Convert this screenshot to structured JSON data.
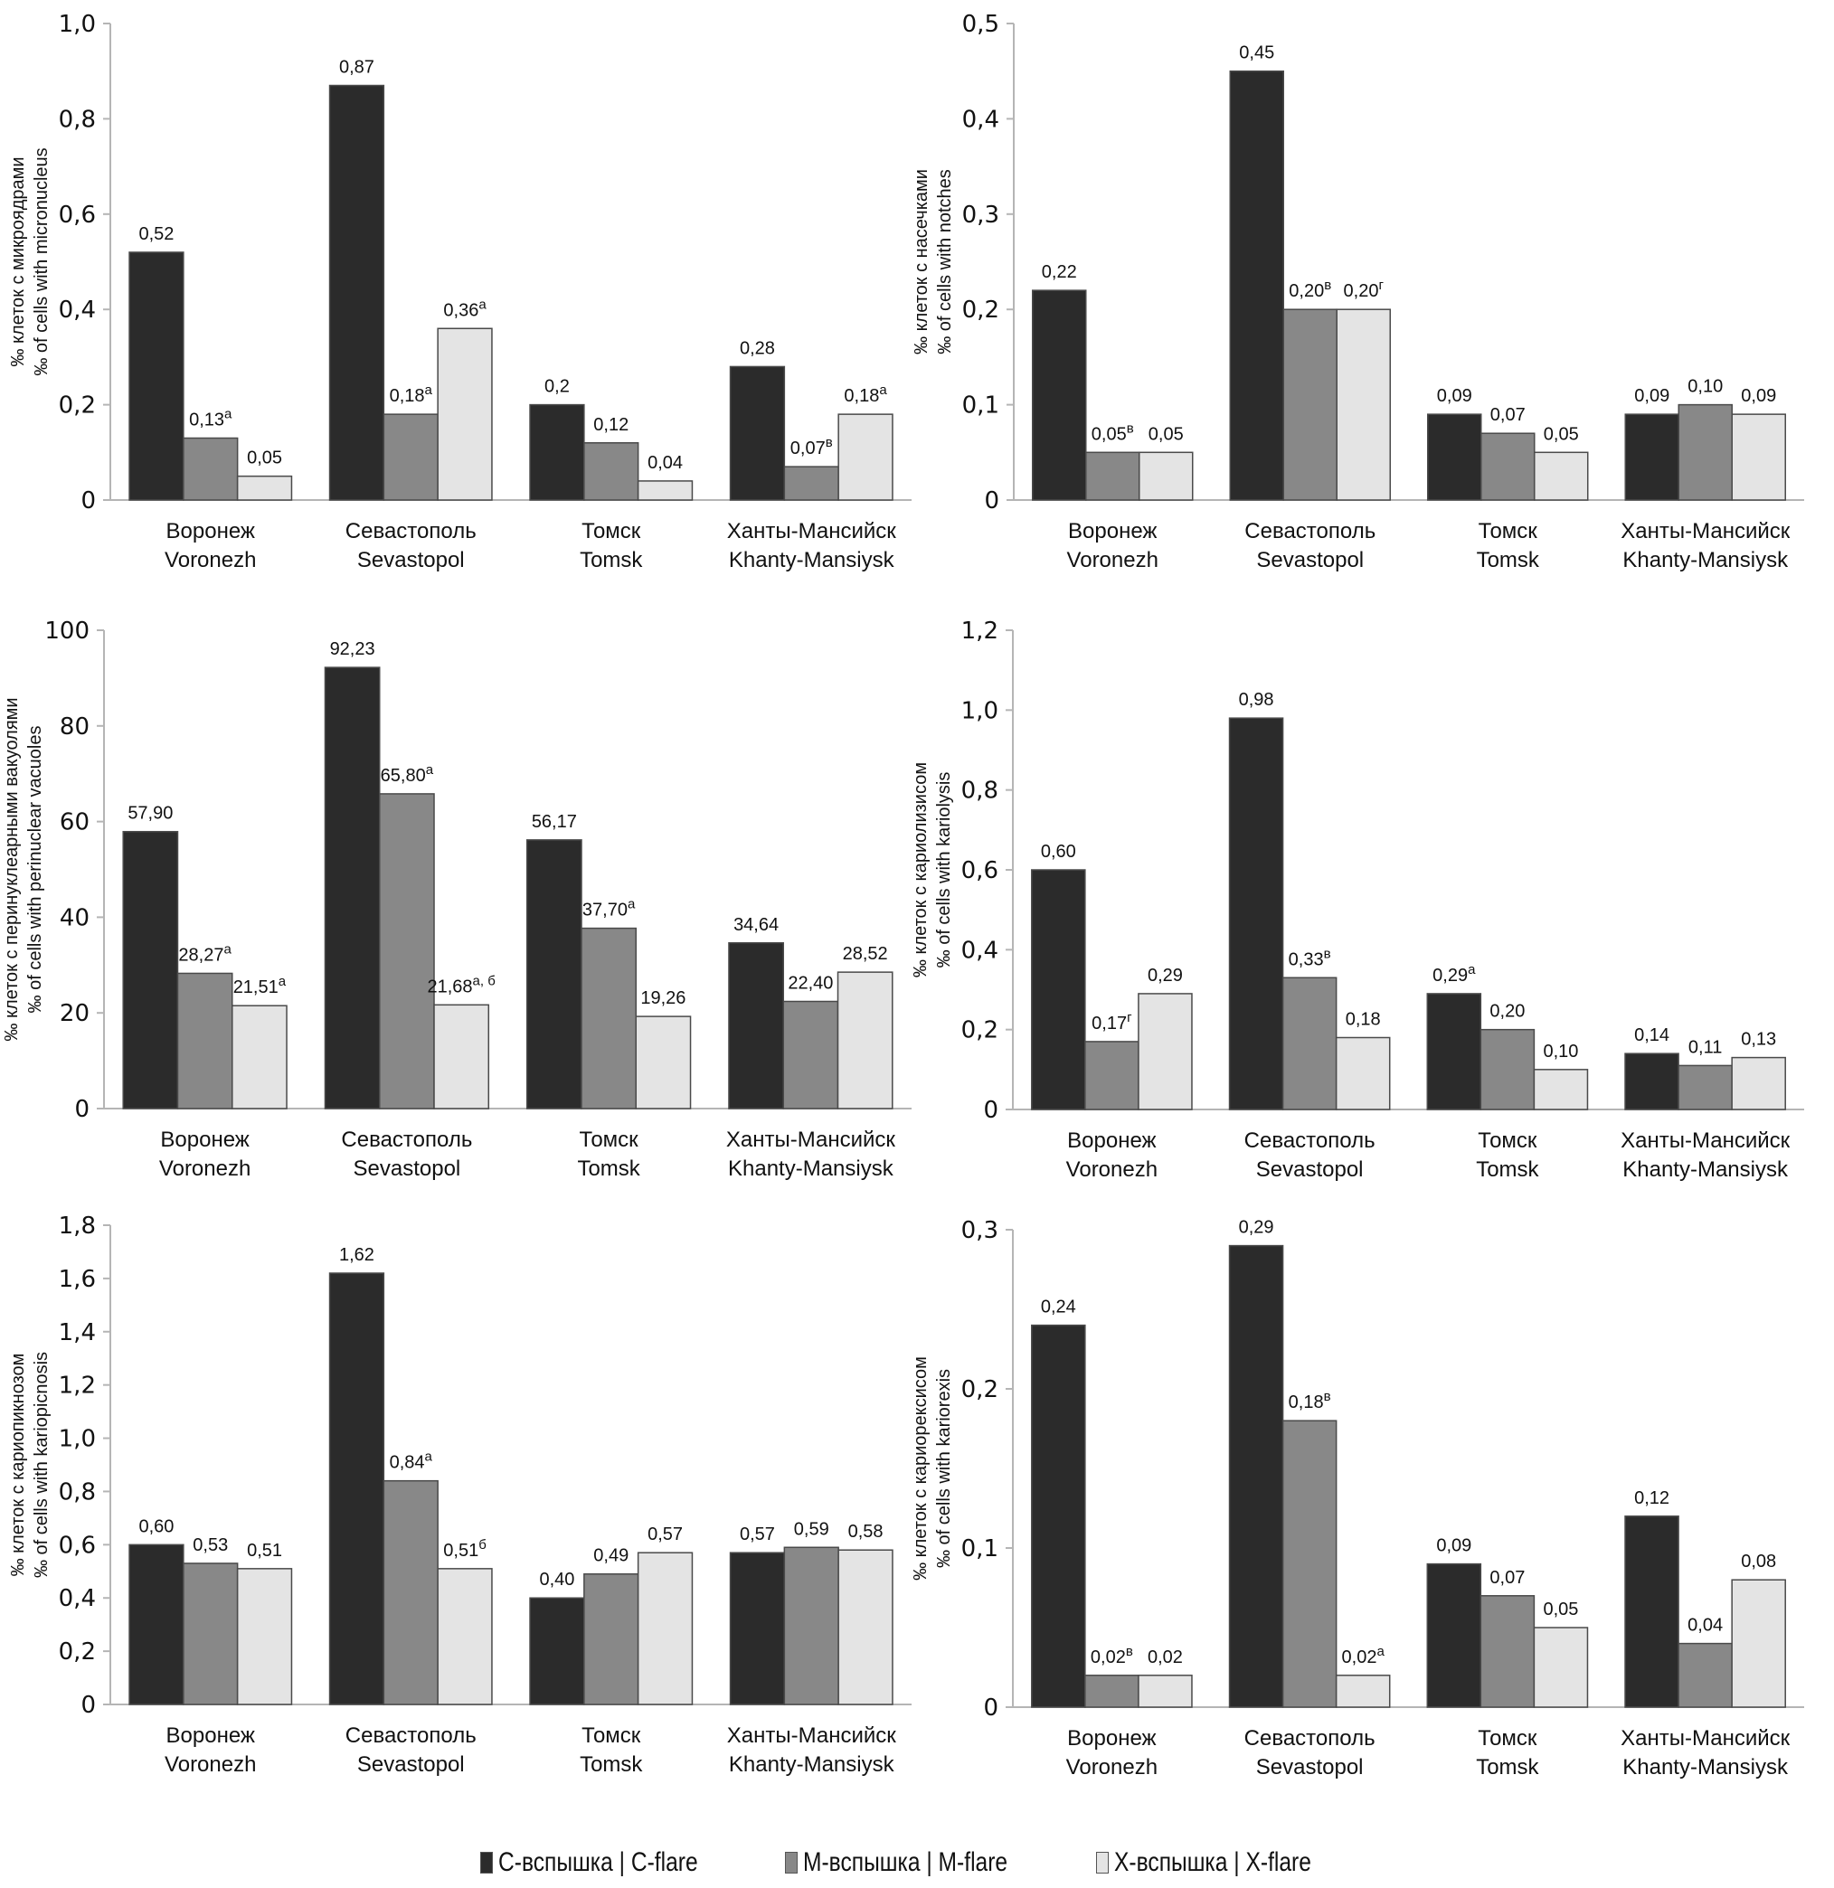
{
  "figure": {
    "legend": [
      {
        "label": "С-вспышка | C-flare",
        "color": "#2b2b2b"
      },
      {
        "label": "М-вспышка | M-flare",
        "color": "#888888"
      },
      {
        "label": "Х-вспышка | X-flare",
        "color": "#e4e4e4"
      }
    ]
  },
  "chart_data": [
    {
      "type": "bar",
      "title": "",
      "ylabel": [
        "‰ клеток с микроядрами",
        "‰ of cells with micronucleus"
      ],
      "xlabel": "",
      "ylim": [
        0,
        1.0
      ],
      "yticks": [
        0,
        0.2,
        0.4,
        0.6,
        0.8,
        1.0
      ],
      "ytick_labels": [
        "0",
        "0,2",
        "0,4",
        "0,6",
        "0,8",
        "1,0"
      ],
      "grid": false,
      "categories": [
        [
          "Воронеж",
          "Voronezh"
        ],
        [
          "Севастополь",
          "Sevastopol"
        ],
        [
          "Томск",
          "Tomsk"
        ],
        [
          "Ханты-Мансийск",
          "Khanty-Mansiysk"
        ]
      ],
      "series": [
        {
          "name": "С-вспышка | C-flare",
          "values": [
            0.52,
            0.87,
            0.2,
            0.28
          ],
          "labels": [
            "0,52",
            "0,87",
            "0,2",
            "0,28"
          ],
          "sup": [
            "",
            "",
            "",
            ""
          ]
        },
        {
          "name": "М-вспышка | M-flare",
          "values": [
            0.13,
            0.18,
            0.12,
            0.07
          ],
          "labels": [
            "0,13",
            "0,18",
            "0,12",
            "0,07"
          ],
          "sup": [
            "а",
            "а",
            "",
            "в"
          ]
        },
        {
          "name": "Х-вспышка | X-flare",
          "values": [
            0.05,
            0.36,
            0.04,
            0.18
          ],
          "labels": [
            "0,05",
            "0,36",
            "0,04",
            "0,18"
          ],
          "sup": [
            "",
            "а",
            "",
            "а"
          ]
        }
      ],
      "legend_position": "bottom"
    },
    {
      "type": "bar",
      "title": "",
      "ylabel": [
        "‰ клеток с насечками",
        "‰ of cells with notches"
      ],
      "xlabel": "",
      "ylim": [
        0,
        0.5
      ],
      "yticks": [
        0,
        0.1,
        0.2,
        0.3,
        0.4,
        0.5
      ],
      "ytick_labels": [
        "0",
        "0,1",
        "0,2",
        "0,3",
        "0,4",
        "0,5"
      ],
      "grid": false,
      "categories": [
        [
          "Воронеж",
          "Voronezh"
        ],
        [
          "Севастополь",
          "Sevastopol"
        ],
        [
          "Томск",
          "Tomsk"
        ],
        [
          "Ханты-Мансийск",
          "Khanty-Mansiysk"
        ]
      ],
      "series": [
        {
          "name": "С-вспышка | C-flare",
          "values": [
            0.22,
            0.45,
            0.09,
            0.09
          ],
          "labels": [
            "0,22",
            "0,45",
            "0,09",
            "0,09"
          ],
          "sup": [
            "",
            "",
            "",
            ""
          ]
        },
        {
          "name": "М-вспышка | M-flare",
          "values": [
            0.05,
            0.2,
            0.07,
            0.1
          ],
          "labels": [
            "0,05",
            "0,20",
            "0,07",
            "0,10"
          ],
          "sup": [
            "в",
            "в",
            "",
            ""
          ]
        },
        {
          "name": "Х-вспышка | X-flare",
          "values": [
            0.05,
            0.2,
            0.05,
            0.09
          ],
          "labels": [
            "0,05",
            "0,20",
            "0,05",
            "0,09"
          ],
          "sup": [
            "",
            "г",
            "",
            ""
          ]
        }
      ],
      "legend_position": "bottom"
    },
    {
      "type": "bar",
      "title": "",
      "ylabel": [
        "‰ клеток с перинуклеарными вакуолями",
        "‰  of cells with perinuclear vacuoles"
      ],
      "xlabel": "",
      "ylim": [
        0,
        100
      ],
      "yticks": [
        0,
        20,
        40,
        60,
        80,
        100
      ],
      "ytick_labels": [
        "0",
        "20",
        "40",
        "60",
        "80",
        "100"
      ],
      "grid": false,
      "categories": [
        [
          "Воронеж",
          "Voronezh"
        ],
        [
          "Севастополь",
          "Sevastopol"
        ],
        [
          "Томск",
          "Tomsk"
        ],
        [
          "Ханты-Мансийск",
          "Khanty-Mansiysk"
        ]
      ],
      "series": [
        {
          "name": "С-вспышка | C-flare",
          "values": [
            57.9,
            92.23,
            56.17,
            34.64
          ],
          "labels": [
            "57,90",
            "92,23",
            "56,17",
            "34,64"
          ],
          "sup": [
            "",
            "",
            "",
            ""
          ]
        },
        {
          "name": "М-вспышка | M-flare",
          "values": [
            28.27,
            65.8,
            37.7,
            22.4
          ],
          "labels": [
            "28,27",
            "65,80",
            "37,70",
            "22,40"
          ],
          "sup": [
            "а",
            "а",
            "а",
            ""
          ]
        },
        {
          "name": "Х-вспышка | X-flare",
          "values": [
            21.51,
            21.68,
            19.26,
            28.52
          ],
          "labels": [
            "21,51",
            "21,68",
            "19,26",
            "28,52"
          ],
          "sup": [
            "а",
            "а, б",
            "",
            ""
          ]
        }
      ],
      "legend_position": "bottom"
    },
    {
      "type": "bar",
      "title": "",
      "ylabel": [
        "‰ клеток с кариолизисом",
        "‰ of cells with kariolysis"
      ],
      "xlabel": "",
      "ylim": [
        0,
        1.2
      ],
      "yticks": [
        0,
        0.2,
        0.4,
        0.6,
        0.8,
        1.0,
        1.2
      ],
      "ytick_labels": [
        "0",
        "0,2",
        "0,4",
        "0,6",
        "0,8",
        "1,0",
        "1,2"
      ],
      "grid": false,
      "categories": [
        [
          "Воронеж",
          "Voronezh"
        ],
        [
          "Севастополь",
          "Sevastopol"
        ],
        [
          "Томск",
          "Tomsk"
        ],
        [
          "Ханты-Мансийск",
          "Khanty-Mansiysk"
        ]
      ],
      "series": [
        {
          "name": "С-вспышка | C-flare",
          "values": [
            0.6,
            0.98,
            0.29,
            0.14
          ],
          "labels": [
            "0,60",
            "0,98",
            "0,29",
            "0,14"
          ],
          "sup": [
            "",
            "",
            "а",
            ""
          ]
        },
        {
          "name": "М-вспышка | M-flare",
          "values": [
            0.17,
            0.33,
            0.2,
            0.11
          ],
          "labels": [
            "0,17",
            "0,33",
            "0,20",
            "0,11"
          ],
          "sup": [
            "г",
            "в",
            "",
            ""
          ]
        },
        {
          "name": "Х-вспышка | X-flare",
          "values": [
            0.29,
            0.18,
            0.1,
            0.13
          ],
          "labels": [
            "0,29",
            "0,18",
            "0,10",
            "0,13"
          ],
          "sup": [
            "",
            "",
            "",
            ""
          ]
        }
      ],
      "legend_position": "bottom"
    },
    {
      "type": "bar",
      "title": "",
      "ylabel": [
        "‰ клеток с кариопикнозом",
        "‰ of cells with kariopicnosis"
      ],
      "xlabel": "",
      "ylim": [
        0,
        1.8
      ],
      "yticks": [
        0,
        0.2,
        0.4,
        0.6,
        0.8,
        1.0,
        1.2,
        1.4,
        1.6,
        1.8
      ],
      "ytick_labels": [
        "0",
        "0,2",
        "0,4",
        "0,6",
        "0,8",
        "1,0",
        "1,2",
        "1,4",
        "1,6",
        "1,8"
      ],
      "grid": false,
      "categories": [
        [
          "Воронеж",
          "Voronezh"
        ],
        [
          "Севастополь",
          "Sevastopol"
        ],
        [
          "Томск",
          "Tomsk"
        ],
        [
          "Ханты-Мансийск",
          "Khanty-Mansiysk"
        ]
      ],
      "series": [
        {
          "name": "С-вспышка | C-flare",
          "values": [
            0.6,
            1.62,
            0.4,
            0.57
          ],
          "labels": [
            "0,60",
            "1,62",
            "0,40",
            "0,57"
          ],
          "sup": [
            "",
            "",
            "",
            ""
          ]
        },
        {
          "name": "М-вспышка | M-flare",
          "values": [
            0.53,
            0.84,
            0.49,
            0.59
          ],
          "labels": [
            "0,53",
            "0,84",
            "0,49",
            "0,59"
          ],
          "sup": [
            "",
            "а",
            "",
            ""
          ]
        },
        {
          "name": "Х-вспышка | X-flare",
          "values": [
            0.51,
            0.51,
            0.57,
            0.58
          ],
          "labels": [
            "0,51",
            "0,51",
            "0,57",
            "0,58"
          ],
          "sup": [
            "",
            "б",
            "",
            ""
          ]
        }
      ],
      "legend_position": "bottom"
    },
    {
      "type": "bar",
      "title": "",
      "ylabel": [
        "‰ клеток с кариорексисом",
        "‰ of cells with kariorexis"
      ],
      "xlabel": "",
      "ylim": [
        0,
        0.3
      ],
      "yticks": [
        0,
        0.1,
        0.2,
        0.3
      ],
      "ytick_labels": [
        "0",
        "0,1",
        "0,2",
        "0,3"
      ],
      "grid": false,
      "categories": [
        [
          "Воронеж",
          "Voronezh"
        ],
        [
          "Севастополь",
          "Sevastopol"
        ],
        [
          "Томск",
          "Tomsk"
        ],
        [
          "Ханты-Мансийск",
          "Khanty-Mansiysk"
        ]
      ],
      "series": [
        {
          "name": "С-вспышка | C-flare",
          "values": [
            0.24,
            0.29,
            0.09,
            0.12
          ],
          "labels": [
            "0,24",
            "0,29",
            "0,09",
            "0,12"
          ],
          "sup": [
            "",
            "",
            "",
            ""
          ]
        },
        {
          "name": "М-вспышка | M-flare",
          "values": [
            0.02,
            0.18,
            0.07,
            0.04
          ],
          "labels": [
            "0,02",
            "0,18",
            "0,07",
            "0,04"
          ],
          "sup": [
            "в",
            "в",
            "",
            ""
          ]
        },
        {
          "name": "Х-вспышка | X-flare",
          "values": [
            0.02,
            0.02,
            0.05,
            0.08
          ],
          "labels": [
            "0,02",
            "0,02",
            "0,05",
            "0,08"
          ],
          "sup": [
            "",
            "а",
            "",
            ""
          ]
        }
      ],
      "legend_position": "bottom"
    }
  ]
}
